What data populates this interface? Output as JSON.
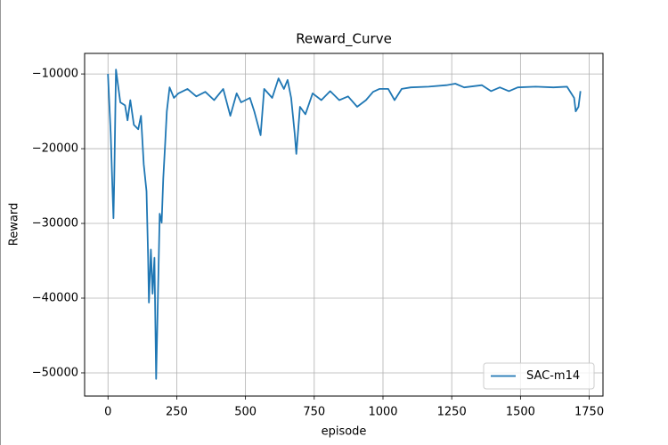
{
  "chart_data": {
    "type": "line",
    "title": "Reward_Curve",
    "x_label": "episode",
    "y_label": "Reward",
    "xlim": [
      -85,
      1800
    ],
    "ylim": [
      -53100,
      -7250
    ],
    "xticks": [
      0,
      250,
      500,
      750,
      1000,
      1250,
      1500,
      1750
    ],
    "yticks": [
      {
        "value": -10000,
        "label": "−10000"
      },
      {
        "value": -20000,
        "label": "−20000"
      },
      {
        "value": -30000,
        "label": "−30000"
      },
      {
        "value": -40000,
        "label": "−40000"
      },
      {
        "value": -50000,
        "label": "−50000"
      }
    ],
    "grid": true,
    "legend": "lower right",
    "x": [
      0,
      10,
      16,
      20,
      23,
      29,
      36,
      45,
      62,
      71,
      81,
      94,
      110,
      120,
      130,
      140,
      146,
      149,
      156,
      162,
      169,
      175,
      182,
      188,
      195,
      201,
      208,
      214,
      224,
      240,
      256,
      289,
      321,
      354,
      386,
      419,
      445,
      468,
      484,
      516,
      532,
      555,
      568,
      597,
      620,
      640,
      653,
      666,
      679,
      685,
      698,
      718,
      744,
      776,
      808,
      841,
      873,
      906,
      938,
      964,
      987,
      1019,
      1042,
      1068,
      1101,
      1166,
      1231,
      1263,
      1295,
      1360,
      1393,
      1425,
      1458,
      1490,
      1555,
      1620,
      1669,
      1695,
      1701,
      1711,
      1718
    ],
    "series": [
      {
        "name": "SAC-m14",
        "color": "#1f77b4",
        "values": [
          -10000,
          -18000,
          -25100,
          -29300,
          -24000,
          -9400,
          -11400,
          -13800,
          -14200,
          -16200,
          -13500,
          -16800,
          -17400,
          -15600,
          -22100,
          -25700,
          -34600,
          -40600,
          -33500,
          -39400,
          -34600,
          -50800,
          -39400,
          -28700,
          -29900,
          -24000,
          -19200,
          -15000,
          -11800,
          -13200,
          -12600,
          -12000,
          -13000,
          -12400,
          -13500,
          -12000,
          -15600,
          -12600,
          -13800,
          -13200,
          -15000,
          -18200,
          -12000,
          -13200,
          -10600,
          -12000,
          -10800,
          -13200,
          -18000,
          -20700,
          -14400,
          -15400,
          -12600,
          -13500,
          -12300,
          -13500,
          -13000,
          -14400,
          -13500,
          -12400,
          -12000,
          -12000,
          -13500,
          -12000,
          -11800,
          -11700,
          -11500,
          -11300,
          -11800,
          -11500,
          -12300,
          -11800,
          -12300,
          -11800,
          -11700,
          -11800,
          -11700,
          -13200,
          -15000,
          -14400,
          -12300
        ]
      }
    ]
  }
}
